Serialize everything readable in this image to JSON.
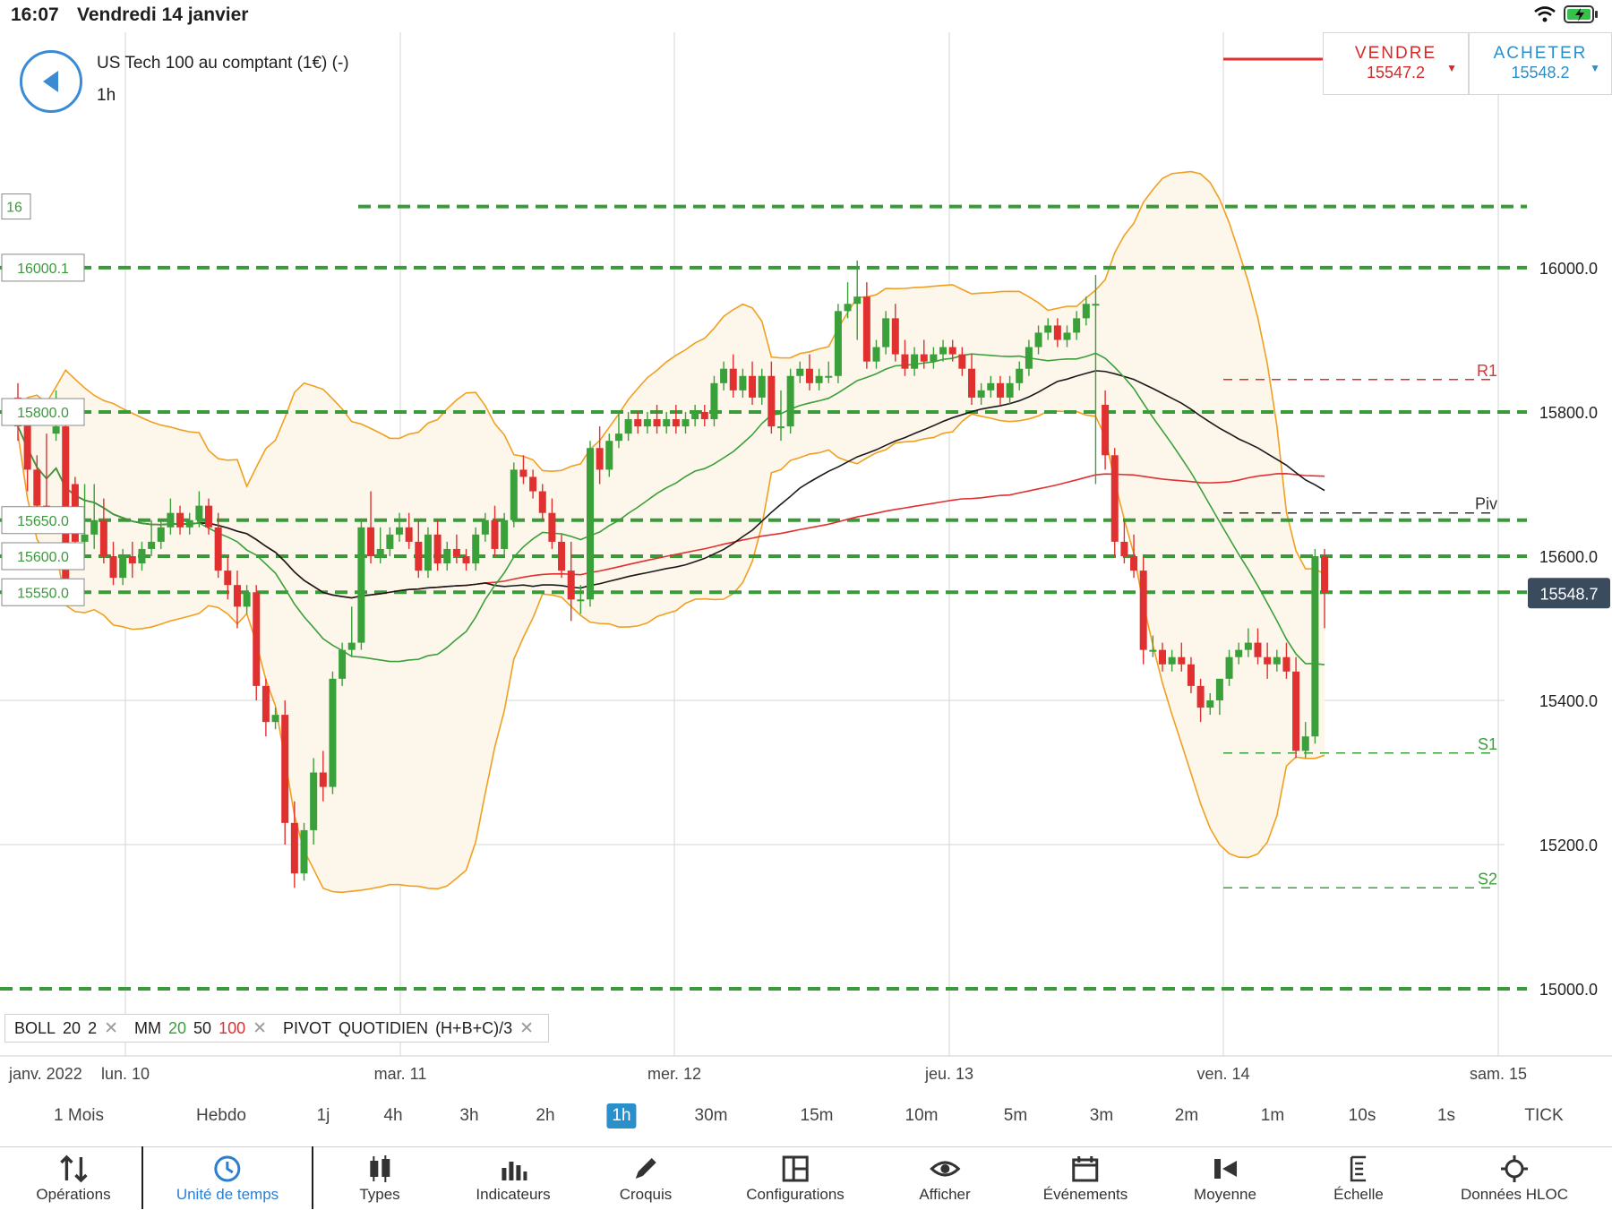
{
  "status": {
    "time": "16:07",
    "date": "Vendredi 14 janvier"
  },
  "instrument": {
    "name": "US Tech 100 au comptant (1€) (-)",
    "timeframe": "1h",
    "partial_label": "16"
  },
  "trade": {
    "sell": {
      "label": "VENDRE",
      "price": "15547.2"
    },
    "buy": {
      "label": "ACHETER",
      "price": "15548.2"
    },
    "colors": {
      "sell": "#d32a2a",
      "buy": "#2a8fcb"
    }
  },
  "chart_data": {
    "type": "candlestick",
    "y_axis_labels": [
      "16000.0",
      "15800.0",
      "15600.0",
      "15400.0",
      "15200.0",
      "15000.0"
    ],
    "ylim": [
      15000,
      16000
    ],
    "current_price": "15548.7",
    "x_axis_labels": [
      "janv. 2022",
      "lun. 10",
      "mar. 11",
      "mer. 12",
      "jeu. 13",
      "ven. 14",
      "sam. 15"
    ],
    "level_tags": [
      "16000.1",
      "15800.0",
      "15650.0",
      "15600.0",
      "15550.0"
    ],
    "levels": [
      16085,
      16000.1,
      15800,
      15650,
      15600,
      15550,
      15000
    ],
    "pivots": [
      {
        "label": "R1",
        "value": 15845,
        "color": "#e03030"
      },
      {
        "label": "Piv",
        "value": 15660,
        "color": "#333333"
      },
      {
        "label": "S1",
        "value": 15327,
        "color": "#3aa03a"
      },
      {
        "label": "S2",
        "value": 15140,
        "color": "#3aa03a"
      }
    ],
    "candles": [
      [
        15820,
        15840,
        15780,
        15760
      ],
      [
        15800,
        15810,
        15720,
        15690
      ],
      [
        15720,
        15740,
        15670,
        15650
      ],
      [
        15670,
        15770,
        15660,
        15640
      ],
      [
        15770,
        15830,
        15780,
        15760
      ],
      [
        15780,
        15800,
        15560,
        15540
      ],
      [
        15700,
        15710,
        15620,
        15600
      ],
      [
        15620,
        15700,
        15630,
        15600
      ],
      [
        15630,
        15700,
        15650,
        15610
      ],
      [
        15650,
        15680,
        15600,
        15590
      ],
      [
        15600,
        15620,
        15570,
        15560
      ],
      [
        15570,
        15610,
        15600,
        15560
      ],
      [
        15600,
        15620,
        15590,
        15570
      ],
      [
        15590,
        15620,
        15610,
        15580
      ],
      [
        15610,
        15650,
        15620,
        15600
      ],
      [
        15620,
        15650,
        15640,
        15610
      ],
      [
        15640,
        15680,
        15660,
        15630
      ],
      [
        15660,
        15670,
        15640,
        15630
      ],
      [
        15640,
        15660,
        15650,
        15630
      ],
      [
        15650,
        15690,
        15670,
        15640
      ],
      [
        15670,
        15680,
        15640,
        15630
      ],
      [
        15640,
        15660,
        15580,
        15570
      ],
      [
        15580,
        15600,
        15560,
        15540
      ],
      [
        15560,
        15580,
        15530,
        15500
      ],
      [
        15530,
        15560,
        15550,
        15520
      ],
      [
        15550,
        15560,
        15420,
        15400
      ],
      [
        15420,
        15430,
        15370,
        15350
      ],
      [
        15370,
        15390,
        15380,
        15360
      ],
      [
        15380,
        15400,
        15230,
        15200
      ],
      [
        15230,
        15260,
        15160,
        15140
      ],
      [
        15160,
        15230,
        15220,
        15150
      ],
      [
        15220,
        15320,
        15300,
        15200
      ],
      [
        15300,
        15330,
        15280,
        15260
      ],
      [
        15280,
        15440,
        15430,
        15270
      ],
      [
        15430,
        15480,
        15470,
        15420
      ],
      [
        15470,
        15530,
        15480,
        15460
      ],
      [
        15480,
        15650,
        15640,
        15470
      ],
      [
        15640,
        15690,
        15600,
        15590
      ],
      [
        15600,
        15640,
        15610,
        15590
      ],
      [
        15610,
        15640,
        15630,
        15600
      ],
      [
        15630,
        15660,
        15640,
        15620
      ],
      [
        15640,
        15660,
        15620,
        15610
      ],
      [
        15620,
        15650,
        15580,
        15570
      ],
      [
        15580,
        15640,
        15630,
        15570
      ],
      [
        15630,
        15650,
        15590,
        15580
      ],
      [
        15590,
        15620,
        15610,
        15580
      ],
      [
        15610,
        15630,
        15600,
        15590
      ],
      [
        15600,
        15610,
        15590,
        15580
      ],
      [
        15590,
        15640,
        15630,
        15580
      ],
      [
        15630,
        15660,
        15650,
        15620
      ],
      [
        15650,
        15670,
        15610,
        15600
      ],
      [
        15610,
        15660,
        15650,
        15600
      ],
      [
        15650,
        15730,
        15720,
        15640
      ],
      [
        15720,
        15740,
        15710,
        15700
      ],
      [
        15710,
        15720,
        15690,
        15680
      ],
      [
        15690,
        15700,
        15660,
        15650
      ],
      [
        15660,
        15680,
        15620,
        15610
      ],
      [
        15620,
        15630,
        15580,
        15570
      ],
      [
        15580,
        15620,
        15540,
        15510
      ],
      [
        15540,
        15560,
        15540,
        15520
      ],
      [
        15540,
        15760,
        15750,
        15530
      ],
      [
        15750,
        15780,
        15720,
        15700
      ],
      [
        15720,
        15770,
        15760,
        15710
      ],
      [
        15760,
        15800,
        15770,
        15750
      ],
      [
        15770,
        15800,
        15790,
        15760
      ],
      [
        15790,
        15800,
        15780,
        15770
      ],
      [
        15780,
        15800,
        15790,
        15770
      ],
      [
        15790,
        15810,
        15780,
        15770
      ],
      [
        15780,
        15800,
        15790,
        15770
      ],
      [
        15790,
        15810,
        15780,
        15770
      ],
      [
        15780,
        15800,
        15790,
        15770
      ],
      [
        15790,
        15810,
        15800,
        15780
      ],
      [
        15800,
        15810,
        15790,
        15780
      ],
      [
        15790,
        15850,
        15840,
        15780
      ],
      [
        15840,
        15870,
        15860,
        15830
      ],
      [
        15860,
        15880,
        15830,
        15820
      ],
      [
        15830,
        15860,
        15850,
        15820
      ],
      [
        15850,
        15870,
        15820,
        15810
      ],
      [
        15820,
        15860,
        15850,
        15810
      ],
      [
        15850,
        15870,
        15780,
        15770
      ],
      [
        15780,
        15830,
        15780,
        15760
      ],
      [
        15780,
        15860,
        15850,
        15770
      ],
      [
        15850,
        15870,
        15860,
        15840
      ],
      [
        15860,
        15880,
        15840,
        15830
      ],
      [
        15840,
        15860,
        15850,
        15830
      ],
      [
        15850,
        15870,
        15850,
        15840
      ],
      [
        15850,
        15950,
        15940,
        15840
      ],
      [
        15940,
        15980,
        15950,
        15930
      ],
      [
        15950,
        16010,
        15960,
        15900
      ],
      [
        15960,
        15980,
        15870,
        15860
      ],
      [
        15870,
        15900,
        15890,
        15860
      ],
      [
        15890,
        15940,
        15930,
        15880
      ],
      [
        15930,
        15950,
        15880,
        15870
      ],
      [
        15880,
        15900,
        15860,
        15850
      ],
      [
        15860,
        15890,
        15880,
        15850
      ],
      [
        15880,
        15900,
        15870,
        15860
      ],
      [
        15870,
        15890,
        15880,
        15860
      ],
      [
        15880,
        15900,
        15890,
        15870
      ],
      [
        15890,
        15900,
        15880,
        15870
      ],
      [
        15880,
        15890,
        15860,
        15850
      ],
      [
        15860,
        15880,
        15820,
        15810
      ],
      [
        15820,
        15840,
        15830,
        15810
      ],
      [
        15830,
        15850,
        15840,
        15820
      ],
      [
        15840,
        15850,
        15820,
        15810
      ],
      [
        15820,
        15850,
        15840,
        15810
      ],
      [
        15840,
        15870,
        15860,
        15830
      ],
      [
        15860,
        15900,
        15890,
        15850
      ],
      [
        15890,
        15920,
        15910,
        15880
      ],
      [
        15910,
        15930,
        15920,
        15900
      ],
      [
        15920,
        15930,
        15900,
        15890
      ],
      [
        15900,
        15920,
        15910,
        15890
      ],
      [
        15910,
        15940,
        15930,
        15900
      ],
      [
        15930,
        15960,
        15950,
        15920
      ],
      [
        15950,
        15990,
        15950,
        15700
      ],
      [
        15810,
        15830,
        15740,
        15720
      ],
      [
        15740,
        15750,
        15620,
        15600
      ],
      [
        15620,
        15650,
        15600,
        15590
      ],
      [
        15600,
        15630,
        15580,
        15570
      ],
      [
        15580,
        15600,
        15470,
        15450
      ],
      [
        15470,
        15490,
        15470,
        15460
      ],
      [
        15470,
        15480,
        15450,
        15440
      ],
      [
        15450,
        15470,
        15460,
        15440
      ],
      [
        15460,
        15480,
        15450,
        15440
      ],
      [
        15450,
        15460,
        15420,
        15410
      ],
      [
        15420,
        15430,
        15390,
        15370
      ],
      [
        15390,
        15410,
        15400,
        15380
      ],
      [
        15400,
        15420,
        15430,
        15380
      ],
      [
        15430,
        15470,
        15460,
        15420
      ],
      [
        15460,
        15480,
        15470,
        15450
      ],
      [
        15470,
        15500,
        15480,
        15460
      ],
      [
        15480,
        15500,
        15460,
        15450
      ],
      [
        15460,
        15480,
        15450,
        15430
      ],
      [
        15450,
        15470,
        15460,
        15440
      ],
      [
        15460,
        15480,
        15440,
        15430
      ],
      [
        15440,
        15460,
        15330,
        15320
      ],
      [
        15330,
        15370,
        15350,
        15320
      ],
      [
        15350,
        15610,
        15600,
        15340
      ],
      [
        15600,
        15610,
        15550,
        15500
      ]
    ],
    "indicators": {
      "bollinger": {
        "period": 20,
        "deviation": 2,
        "color": "#f0a020",
        "fill": "#fdf6ea"
      },
      "moving_averages": [
        {
          "period": 20,
          "color": "#3aa03a"
        },
        {
          "period": 50,
          "color": "#1a1a1a"
        },
        {
          "period": 100,
          "color": "#e03030"
        }
      ],
      "pivot": {
        "label": "PIVOT",
        "type": "QUOTIDIEN",
        "formula": "(H+B+C)/3"
      }
    }
  },
  "legend": {
    "boll_label": "BOLL",
    "boll_period": "20",
    "boll_dev": "2",
    "mm_label": "MM",
    "mm_20": "20",
    "mm_50": "50",
    "mm_100": "100",
    "pivot_label": "PIVOT",
    "pivot_type": "QUOTIDIEN",
    "pivot_formula": "(H+B+C)/3",
    "remove_glyph": "✕"
  },
  "timeframes": [
    "1 Mois",
    "Hebdo",
    "1j",
    "4h",
    "3h",
    "2h",
    "1h",
    "30m",
    "15m",
    "10m",
    "5m",
    "3m",
    "2m",
    "1m",
    "10s",
    "1s",
    "TICK"
  ],
  "active_timeframe": "1h",
  "toolbar": [
    "Opérations",
    "Unité de temps",
    "Types",
    "Indicateurs",
    "Croquis",
    "Configurations",
    "Afficher",
    "Événements",
    "Moyenne",
    "Échelle",
    "Données HLOC"
  ],
  "active_toolbar": "Unité de temps",
  "colors": {
    "up": "#3aa03a",
    "down": "#e03030",
    "accent": "#2a8fcb",
    "price_tag": "#3b4b5e"
  }
}
